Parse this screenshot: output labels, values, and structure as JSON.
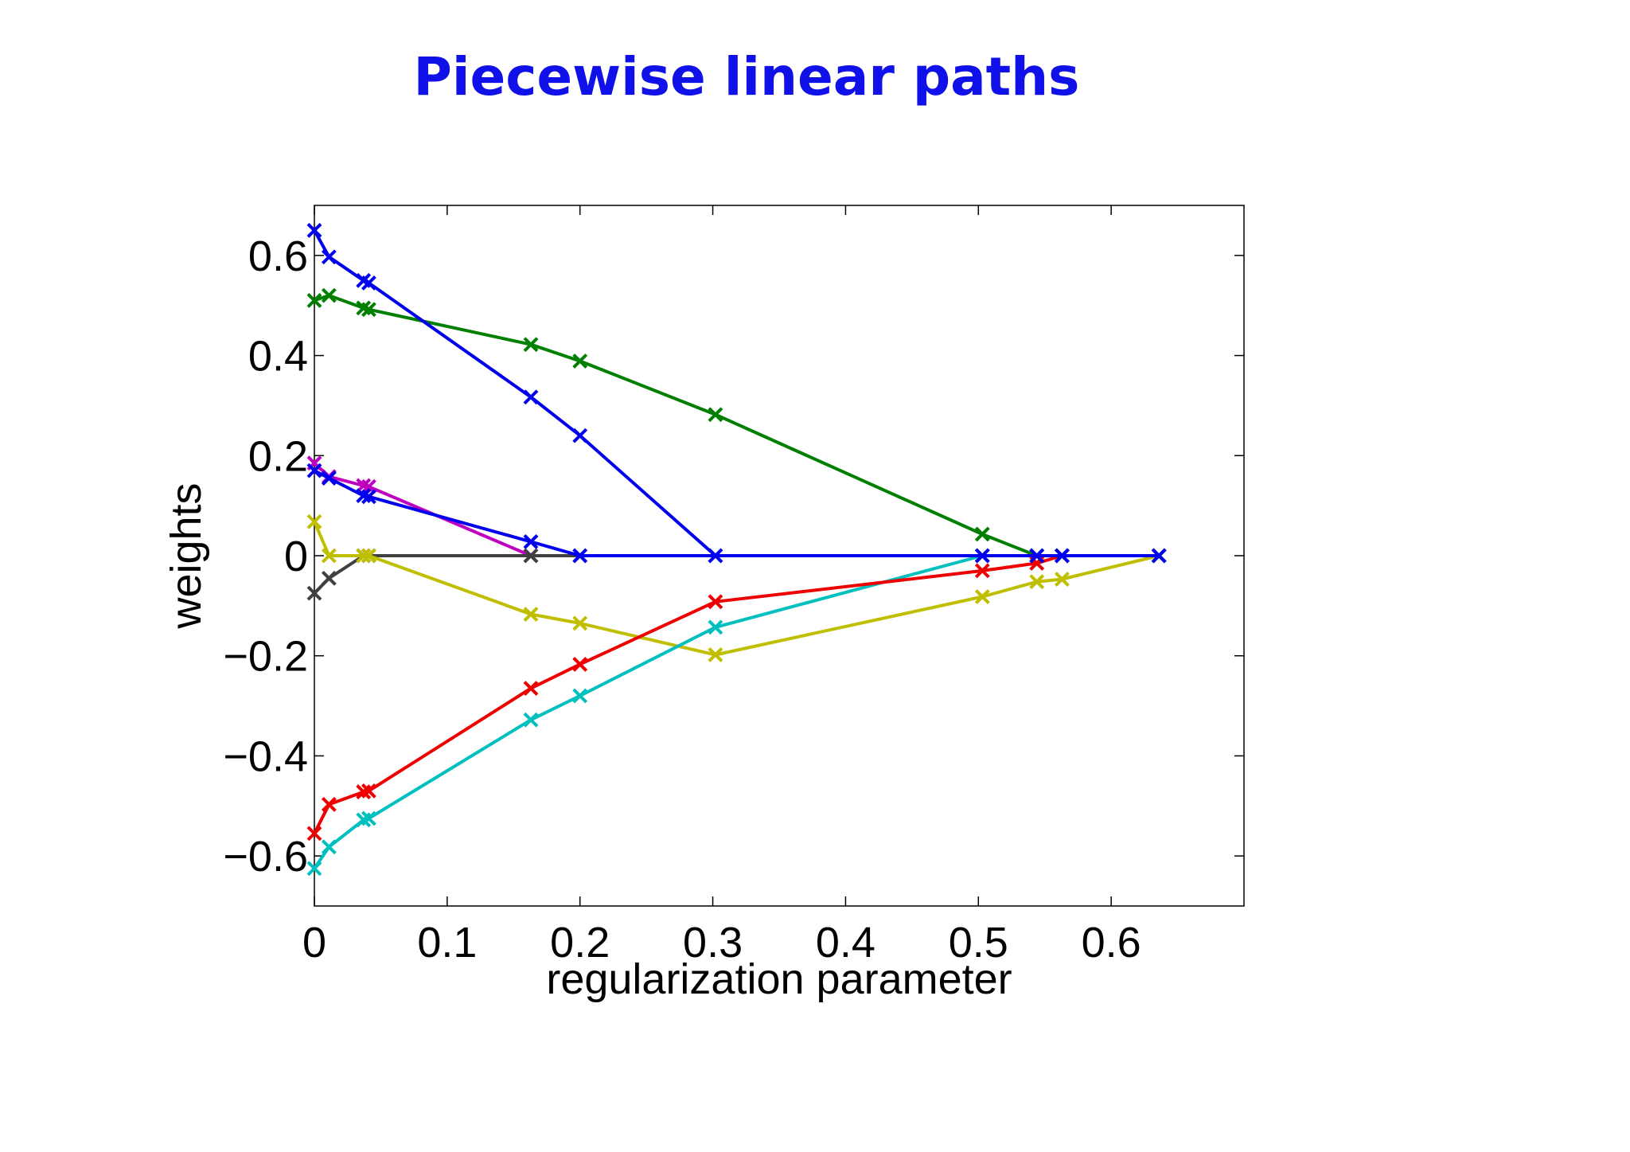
{
  "slide": {
    "title": "Piecewise linear paths",
    "title_color": "#1010e8"
  },
  "chart_data": {
    "type": "line",
    "title": "Piecewise linear paths",
    "xlabel": "regularization parameter",
    "ylabel": "weights",
    "xlim": [
      0,
      0.7
    ],
    "ylim": [
      -0.7,
      0.7
    ],
    "xticks": [
      0,
      0.1,
      0.2,
      0.3,
      0.4,
      0.5,
      0.6
    ],
    "xtick_labels": [
      "0",
      "0.1",
      "0.2",
      "0.3",
      "0.4",
      "0.5",
      "0.6"
    ],
    "yticks": [
      -0.6,
      -0.4,
      -0.2,
      0,
      0.2,
      0.4,
      0.6
    ],
    "ytick_labels": [
      "−0.6",
      "−0.4",
      "−0.2",
      "0",
      "0.2",
      "0.4",
      "0.6"
    ],
    "grid": false,
    "marker": "x",
    "series": [
      {
        "name": "magenta",
        "color": "#c000c0",
        "x": [
          0,
          0.011,
          0.037,
          0.041,
          0.163
        ],
        "y": [
          0.185,
          0.158,
          0.14,
          0.138,
          0
        ]
      },
      {
        "name": "gray",
        "color": "#404040",
        "x": [
          0,
          0.011,
          0.037,
          0.041,
          0.163,
          0.2
        ],
        "y": [
          -0.075,
          -0.045,
          0,
          0,
          0,
          0
        ]
      },
      {
        "name": "yellow",
        "color": "#bfbf00",
        "x": [
          0,
          0.011,
          0.037,
          0.041,
          0.163,
          0.2,
          0.302,
          0.503,
          0.544,
          0.563,
          0.636
        ],
        "y": [
          0.068,
          0,
          0,
          0,
          -0.117,
          -0.135,
          -0.198,
          -0.082,
          -0.052,
          -0.047,
          0
        ]
      },
      {
        "name": "cyan",
        "color": "#00bfbf",
        "x": [
          0,
          0.011,
          0.037,
          0.041,
          0.163,
          0.2,
          0.302,
          0.503,
          0.544,
          0.563,
          0.636
        ],
        "y": [
          -0.625,
          -0.582,
          -0.528,
          -0.525,
          -0.328,
          -0.28,
          -0.143,
          0,
          0,
          0,
          0
        ]
      },
      {
        "name": "red",
        "color": "#ee0000",
        "x": [
          0,
          0.011,
          0.037,
          0.041,
          0.163,
          0.2,
          0.302,
          0.503,
          0.544,
          0.563,
          0.636
        ],
        "y": [
          -0.555,
          -0.497,
          -0.472,
          -0.47,
          -0.265,
          -0.217,
          -0.092,
          -0.03,
          -0.015,
          0,
          0
        ]
      },
      {
        "name": "green",
        "color": "#007f00",
        "x": [
          0,
          0.011,
          0.037,
          0.041,
          0.163,
          0.2,
          0.302,
          0.503,
          0.544,
          0.563,
          0.636
        ],
        "y": [
          0.51,
          0.52,
          0.495,
          0.492,
          0.422,
          0.389,
          0.282,
          0.043,
          0,
          0,
          0
        ]
      },
      {
        "name": "blue-2",
        "color": "#0000ee",
        "x": [
          0,
          0.011,
          0.037,
          0.041,
          0.163,
          0.2,
          0.302,
          0.503,
          0.544,
          0.563,
          0.636
        ],
        "y": [
          0.17,
          0.155,
          0.12,
          0.118,
          0.028,
          0,
          0,
          0,
          0,
          0,
          0
        ]
      },
      {
        "name": "blue-1",
        "color": "#0000ee",
        "x": [
          0,
          0.011,
          0.037,
          0.041,
          0.163,
          0.2,
          0.302,
          0.503,
          0.544,
          0.563,
          0.636
        ],
        "y": [
          0.65,
          0.597,
          0.55,
          0.545,
          0.317,
          0.24,
          0,
          0,
          0,
          0,
          0
        ]
      }
    ]
  }
}
